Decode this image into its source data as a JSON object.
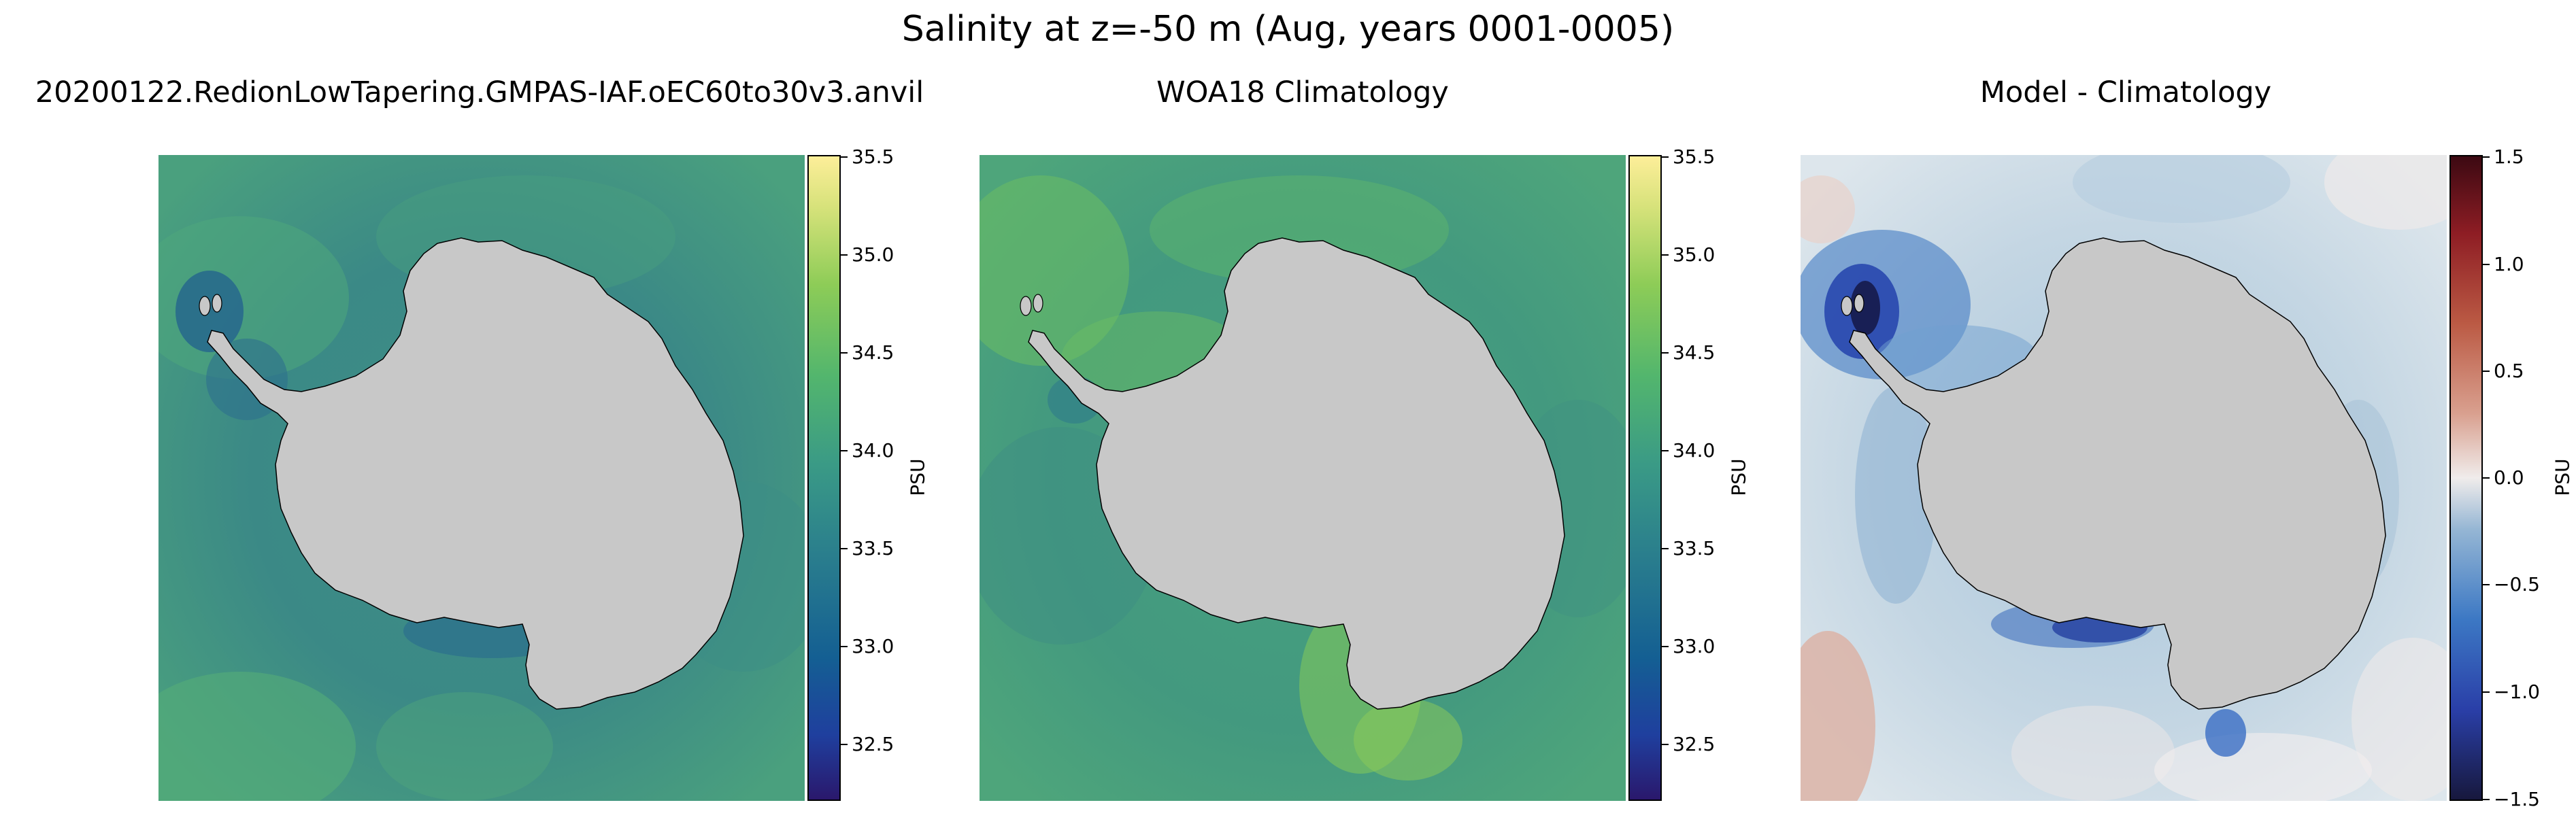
{
  "figure": {
    "title": "Salinity at z=-50 m (Aug, years 0001-0005)"
  },
  "panels": [
    {
      "title": "20200122.RedionLowTapering.GMPAS-IAF.oEC60to30v3.anvil",
      "colormap": "haline",
      "colorbar": {
        "label": "PSU",
        "min": 32.2,
        "max": 35.5,
        "ticks": [
          "32.5",
          "33.0",
          "33.5",
          "34.0",
          "34.5",
          "35.0",
          "35.5"
        ],
        "colors": [
          "#2a186c",
          "#1f3f9e",
          "#145f93",
          "#2a7e8d",
          "#3a9a86",
          "#53b66d",
          "#8dcc57",
          "#d6e27a",
          "#fdee99"
        ]
      },
      "ocean_color": "#3d8a86",
      "land_color": "#c8c8c8"
    },
    {
      "title": "WOA18 Climatology",
      "colormap": "haline",
      "colorbar": {
        "label": "PSU",
        "min": 32.2,
        "max": 35.5,
        "ticks": [
          "32.5",
          "33.0",
          "33.5",
          "34.0",
          "34.5",
          "35.0",
          "35.5"
        ],
        "colors": [
          "#2a186c",
          "#1f3f9e",
          "#145f93",
          "#2a7e8d",
          "#3a9a86",
          "#53b66d",
          "#8dcc57",
          "#d6e27a",
          "#fdee99"
        ]
      },
      "ocean_color": "#4aa57c",
      "land_color": "#c8c8c8"
    },
    {
      "title": "Model - Climatology",
      "colormap": "balance",
      "colorbar": {
        "label": "PSU",
        "min": -1.5,
        "max": 1.5,
        "ticks": [
          "−1.5",
          "−1.0",
          "−0.5",
          "0.0",
          "0.5",
          "1.0",
          "1.5"
        ],
        "colors": [
          "#17183d",
          "#2a3fa8",
          "#3c78c4",
          "#95b6d4",
          "#f0eceb",
          "#d9a08f",
          "#bb5a44",
          "#8e1d24",
          "#3c0912"
        ]
      },
      "ocean_color": "#cfdde6",
      "land_color": "#c8c8c8"
    }
  ]
}
